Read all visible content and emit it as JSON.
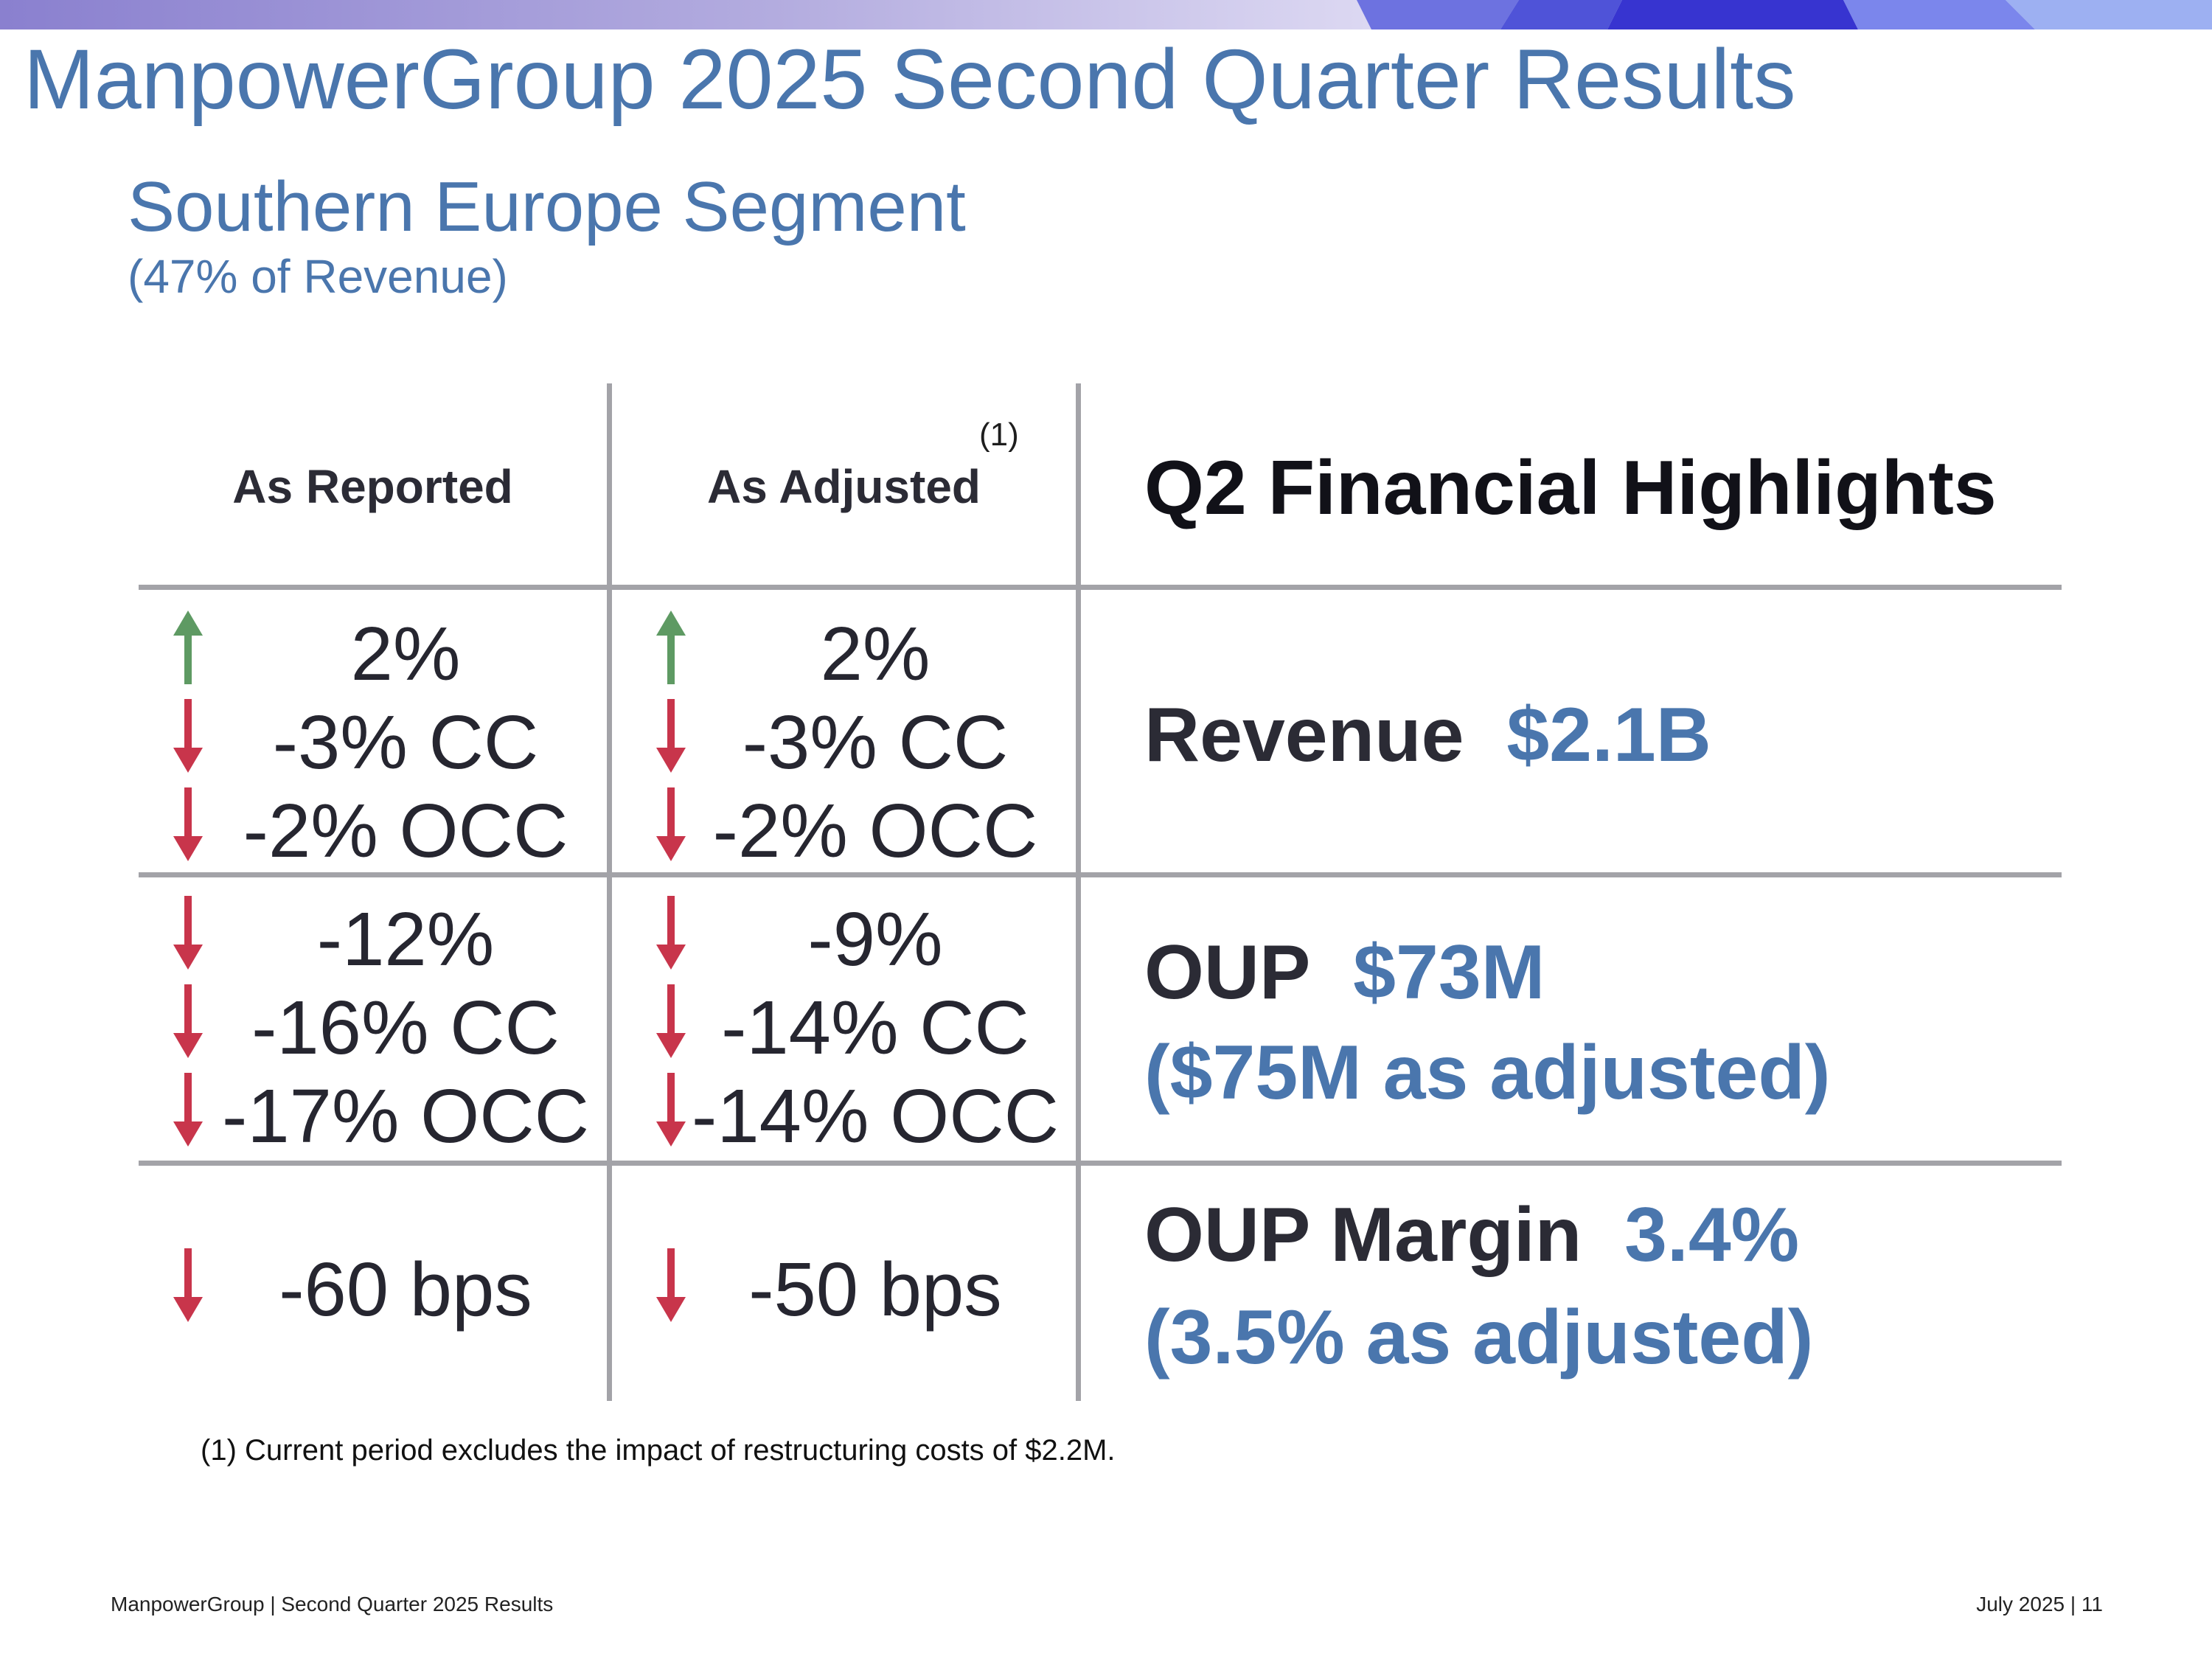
{
  "header": {
    "title": "ManpowerGroup 2025 Second Quarter Results",
    "subtitle": "Southern Europe Segment",
    "revenue_share": "(47% of Revenue)"
  },
  "table": {
    "col_reported": "As Reported",
    "col_adjusted": "As Adjusted",
    "adjusted_footnote_ref": "(1)",
    "highlights_title": "Q2 Financial Highlights",
    "rows": [
      {
        "reported": [
          "2%",
          "-3% CC",
          "-2% OCC"
        ],
        "reported_dirs": [
          "up",
          "down",
          "down"
        ],
        "adjusted": [
          "2%",
          "-3% CC",
          "-2% OCC"
        ],
        "adjusted_dirs": [
          "up",
          "down",
          "down"
        ],
        "label": "Revenue",
        "value": "$2.1B"
      },
      {
        "reported": [
          "-12%",
          "-16% CC",
          "-17% OCC"
        ],
        "reported_dirs": [
          "down",
          "down",
          "down"
        ],
        "adjusted": [
          "-9%",
          "-14% CC",
          "-14% OCC"
        ],
        "adjusted_dirs": [
          "down",
          "down",
          "down"
        ],
        "label": "OUP",
        "value": "$73M",
        "adjusted_note": "($75M as adjusted)"
      },
      {
        "reported": [
          "-60 bps"
        ],
        "reported_dirs": [
          "down"
        ],
        "adjusted": [
          "-50 bps"
        ],
        "adjusted_dirs": [
          "down"
        ],
        "label": "OUP Margin",
        "value": "3.4%",
        "adjusted_note": "(3.5% as adjusted)"
      }
    ]
  },
  "footnote": "(1)  Current period excludes the impact of restructuring costs of $2.2M.",
  "footer": {
    "left": "ManpowerGroup  |  Second Quarter 2025 Results",
    "right": "July 2025   |   11"
  },
  "colors": {
    "accent_blue": "#4a76ad",
    "arrow_up": "#5e9a63",
    "arrow_down": "#c8354b",
    "grid": "#a3a3a8"
  }
}
